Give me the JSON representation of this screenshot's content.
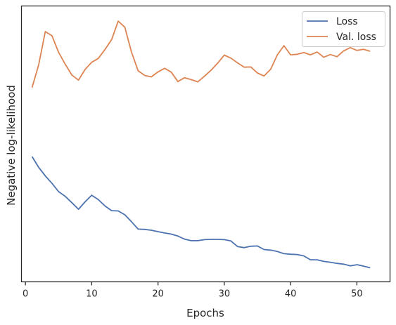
{
  "chart_data": {
    "type": "line",
    "title": "",
    "xlabel": "Epochs",
    "ylabel": "Negative log-likelihood",
    "xlim": [
      -0.6,
      55
    ],
    "ylim": [
      0,
      1
    ],
    "y_ticks_labeled": false,
    "grid": false,
    "legend_position": "top-right",
    "x_ticks": [
      0,
      10,
      20,
      30,
      40,
      50
    ],
    "x_tick_labels": [
      "0",
      "10",
      "20",
      "30",
      "40",
      "50"
    ],
    "x": [
      1,
      2,
      3,
      4,
      5,
      6,
      7,
      8,
      9,
      10,
      11,
      12,
      13,
      14,
      15,
      16,
      17,
      18,
      19,
      20,
      21,
      22,
      23,
      24,
      25,
      26,
      27,
      28,
      29,
      30,
      31,
      32,
      33,
      34,
      35,
      36,
      37,
      38,
      39,
      40,
      41,
      42,
      43,
      44,
      45,
      46,
      47,
      48,
      49,
      50,
      51,
      52
    ],
    "series": [
      {
        "name": "Loss",
        "color": "#4c72b0",
        "values": [
          0.454,
          0.415,
          0.384,
          0.357,
          0.327,
          0.31,
          0.287,
          0.263,
          0.29,
          0.314,
          0.298,
          0.275,
          0.258,
          0.257,
          0.243,
          0.218,
          0.191,
          0.19,
          0.187,
          0.182,
          0.177,
          0.173,
          0.166,
          0.155,
          0.149,
          0.149,
          0.153,
          0.154,
          0.154,
          0.153,
          0.148,
          0.128,
          0.124,
          0.129,
          0.13,
          0.117,
          0.115,
          0.11,
          0.102,
          0.1,
          0.099,
          0.094,
          0.08,
          0.08,
          0.074,
          0.071,
          0.067,
          0.064,
          0.058,
          0.062,
          0.057,
          0.051
        ]
      },
      {
        "name": "Val. loss",
        "color": "#dd8452",
        "values": [
          0.704,
          0.787,
          0.907,
          0.892,
          0.832,
          0.789,
          0.75,
          0.731,
          0.77,
          0.796,
          0.81,
          0.842,
          0.878,
          0.945,
          0.923,
          0.833,
          0.765,
          0.748,
          0.743,
          0.761,
          0.774,
          0.76,
          0.726,
          0.74,
          0.733,
          0.725,
          0.745,
          0.767,
          0.793,
          0.822,
          0.811,
          0.794,
          0.778,
          0.779,
          0.757,
          0.746,
          0.771,
          0.823,
          0.856,
          0.823,
          0.825,
          0.831,
          0.823,
          0.833,
          0.814,
          0.824,
          0.816,
          0.837,
          0.849,
          0.839,
          0.843,
          0.836
        ]
      }
    ]
  }
}
